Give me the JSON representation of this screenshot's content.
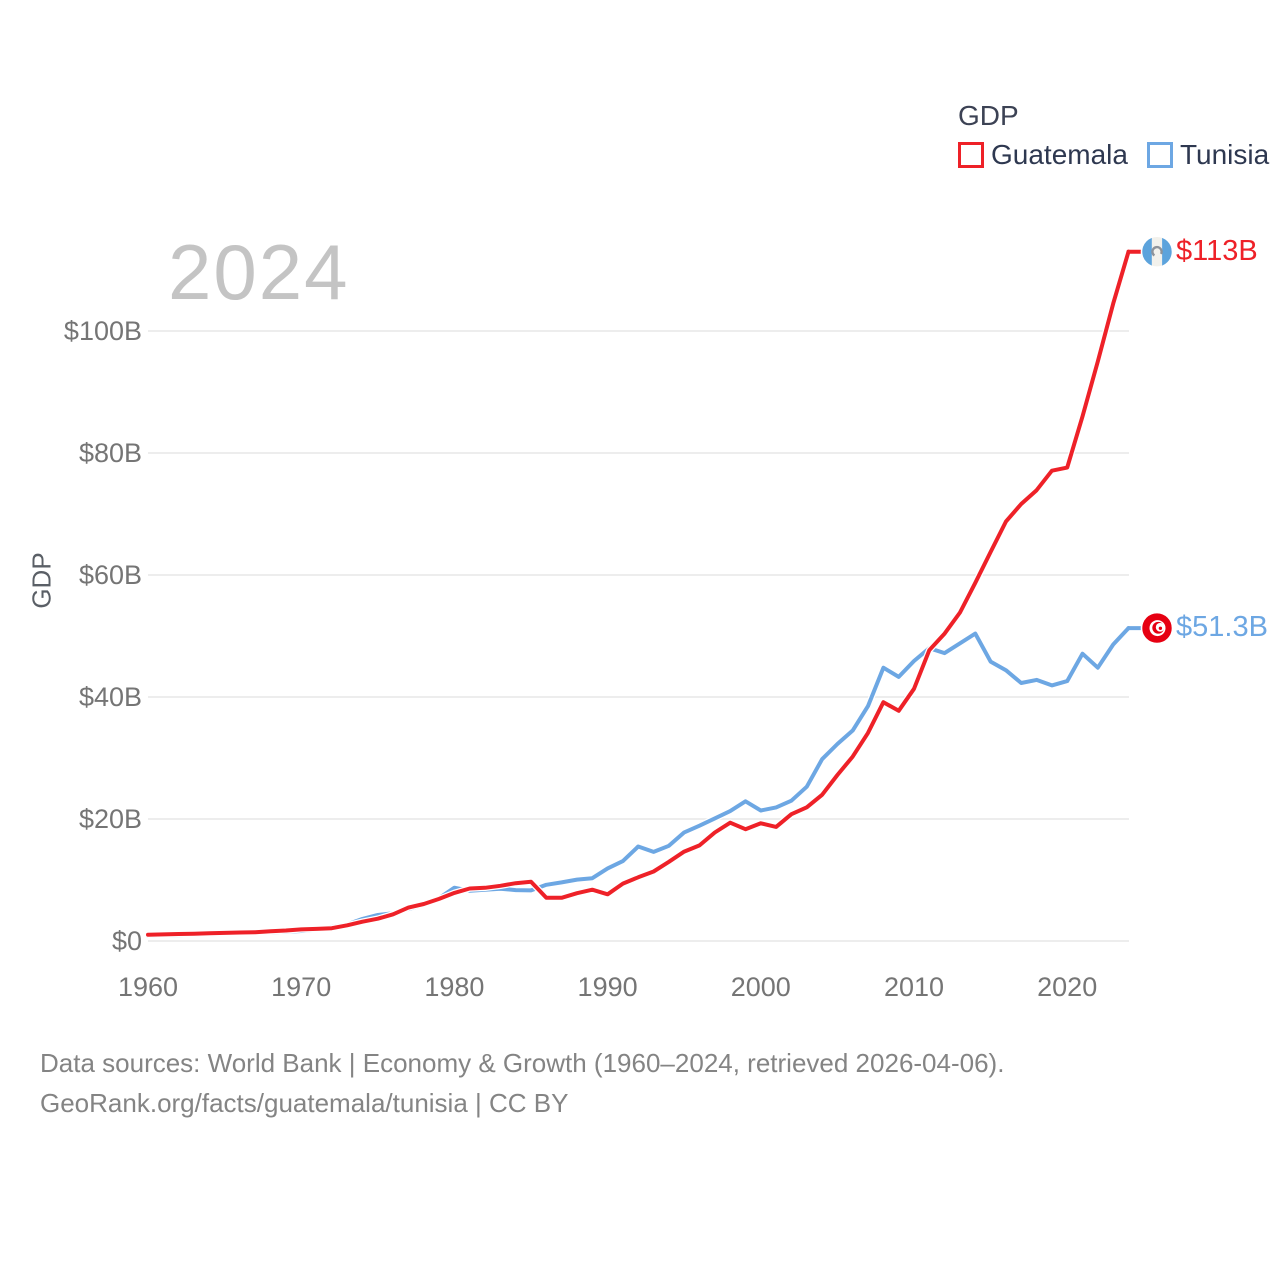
{
  "watermark_year": "2024",
  "legend": {
    "title": "GDP",
    "items": [
      {
        "label": "Guatemala",
        "color": "#ee2128"
      },
      {
        "label": "Tunisia",
        "color": "#6da7e3"
      }
    ]
  },
  "y_axis_label": "GDP",
  "footer": {
    "line1": "Data sources: World Bank | Economy & Growth (1960–2024, retrieved 2026-04-06).",
    "line2": "GeoRank.org/facts/guatemala/tunisia | CC BY"
  },
  "chart_data": {
    "type": "line",
    "title": "2024",
    "xlabel": "",
    "ylabel": "GDP",
    "x_start": 1960,
    "x_end": 2024,
    "xlim": [
      1960,
      2024
    ],
    "ylim": [
      0,
      115
    ],
    "grid": "horizontal",
    "legend_position": "top-right",
    "x_ticks": [
      "1960",
      "1970",
      "1980",
      "1990",
      "2000",
      "2010",
      "2020"
    ],
    "x_tick_values": [
      1960,
      1970,
      1980,
      1990,
      2000,
      2010,
      2020
    ],
    "y_ticks": [
      {
        "label": "$0",
        "value": 0
      },
      {
        "label": "$20B",
        "value": 20
      },
      {
        "label": "$40B",
        "value": 40
      },
      {
        "label": "$60B",
        "value": 60
      },
      {
        "label": "$80B",
        "value": 80
      },
      {
        "label": "$100B",
        "value": 100
      }
    ],
    "series": [
      {
        "name": "Guatemala",
        "color": "#ee2128",
        "end_label": "$113B",
        "flag": "guatemala",
        "values": [
          1.04,
          1.08,
          1.14,
          1.2,
          1.28,
          1.33,
          1.39,
          1.45,
          1.61,
          1.72,
          1.9,
          1.98,
          2.1,
          2.57,
          3.16,
          3.65,
          4.37,
          5.48,
          6.07,
          6.9,
          7.88,
          8.61,
          8.72,
          9.05,
          9.47,
          9.72,
          7.1,
          7.08,
          7.84,
          8.41,
          7.65,
          9.41,
          10.44,
          11.4,
          12.98,
          14.66,
          15.67,
          17.79,
          19.4,
          18.32,
          19.29,
          18.7,
          20.78,
          21.92,
          23.97,
          27.21,
          30.23,
          34.11,
          39.14,
          37.73,
          41.34,
          47.67,
          50.39,
          53.85,
          58.72,
          63.77,
          68.76,
          71.64,
          73.9,
          77.1,
          77.6,
          86.0,
          95.0,
          104.5,
          113.0
        ]
      },
      {
        "name": "Tunisia",
        "color": "#6da7e3",
        "end_label": "$51.3B",
        "flag": "tunisia",
        "values": [
          0.85,
          0.92,
          0.96,
          1.03,
          1.1,
          1.18,
          1.26,
          1.31,
          1.41,
          1.52,
          1.64,
          1.87,
          2.29,
          2.72,
          3.62,
          4.26,
          4.55,
          5.23,
          5.93,
          7.04,
          8.74,
          8.23,
          8.41,
          8.57,
          8.35,
          8.29,
          9.21,
          9.61,
          10.06,
          10.3,
          11.9,
          13.1,
          15.5,
          14.6,
          15.6,
          17.8,
          18.9,
          20.1,
          21.3,
          22.9,
          21.4,
          21.9,
          23.0,
          25.3,
          29.8,
          32.3,
          34.5,
          38.5,
          44.8,
          43.3,
          45.9,
          48.0,
          47.2,
          48.8,
          50.4,
          45.8,
          44.4,
          42.3,
          42.8,
          41.9,
          42.6,
          47.1,
          44.8,
          48.6,
          51.3
        ]
      }
    ]
  }
}
